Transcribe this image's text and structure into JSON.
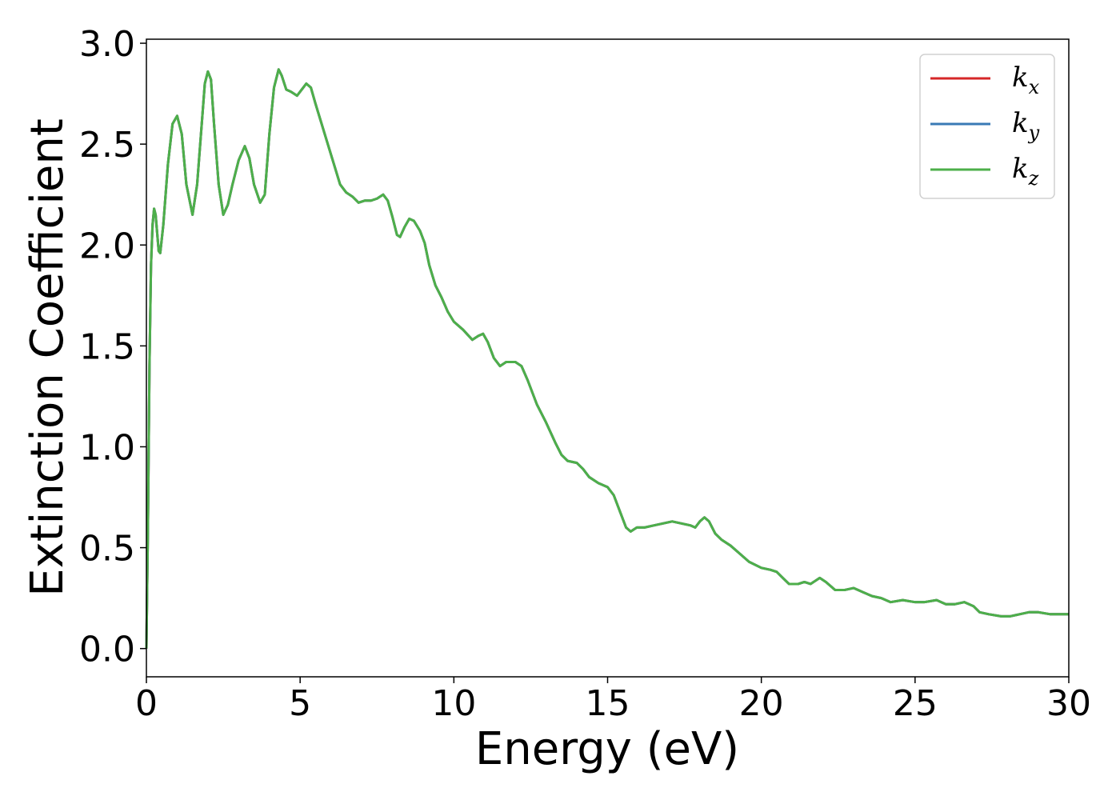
{
  "chart_data": {
    "type": "line",
    "title": "",
    "xlabel": "Energy (eV)",
    "ylabel": "Extinction Coefficient",
    "xlim": [
      0,
      30
    ],
    "ylim": [
      -0.14,
      3.02
    ],
    "x_ticks": [
      "0",
      "5",
      "10",
      "15",
      "20",
      "25",
      "30"
    ],
    "y_ticks": [
      "0.0",
      "0.5",
      "1.0",
      "1.5",
      "2.0",
      "2.5",
      "3.0"
    ],
    "grid": false,
    "legend_position": "top-right",
    "series": [
      {
        "name_base": "k",
        "name_sub": "x",
        "color": "#d62728",
        "points": [
          [
            0,
            0.0
          ],
          [
            0.05,
            0.6
          ],
          [
            0.1,
            1.4
          ],
          [
            0.15,
            1.9
          ],
          [
            0.2,
            2.1
          ],
          [
            0.25,
            2.18
          ],
          [
            0.3,
            2.15
          ],
          [
            0.4,
            1.97
          ],
          [
            0.45,
            1.96
          ],
          [
            0.55,
            2.1
          ],
          [
            0.7,
            2.4
          ],
          [
            0.85,
            2.6
          ],
          [
            1.0,
            2.64
          ],
          [
            1.15,
            2.55
          ],
          [
            1.3,
            2.3
          ],
          [
            1.5,
            2.15
          ],
          [
            1.65,
            2.3
          ],
          [
            1.8,
            2.6
          ],
          [
            1.9,
            2.8
          ],
          [
            2.0,
            2.86
          ],
          [
            2.1,
            2.82
          ],
          [
            2.2,
            2.6
          ],
          [
            2.35,
            2.3
          ],
          [
            2.5,
            2.15
          ],
          [
            2.65,
            2.2
          ],
          [
            2.8,
            2.3
          ],
          [
            3.0,
            2.42
          ],
          [
            3.2,
            2.49
          ],
          [
            3.35,
            2.43
          ],
          [
            3.5,
            2.3
          ],
          [
            3.7,
            2.21
          ],
          [
            3.85,
            2.25
          ],
          [
            4.0,
            2.55
          ],
          [
            4.15,
            2.78
          ],
          [
            4.3,
            2.87
          ],
          [
            4.4,
            2.84
          ],
          [
            4.55,
            2.77
          ],
          [
            4.7,
            2.76
          ],
          [
            4.9,
            2.74
          ],
          [
            5.1,
            2.78
          ],
          [
            5.2,
            2.8
          ],
          [
            5.35,
            2.78
          ],
          [
            5.5,
            2.7
          ],
          [
            5.7,
            2.6
          ],
          [
            5.9,
            2.5
          ],
          [
            6.1,
            2.4
          ],
          [
            6.3,
            2.3
          ],
          [
            6.5,
            2.26
          ],
          [
            6.7,
            2.24
          ],
          [
            6.9,
            2.21
          ],
          [
            7.1,
            2.22
          ],
          [
            7.3,
            2.22
          ],
          [
            7.5,
            2.23
          ],
          [
            7.7,
            2.25
          ],
          [
            7.85,
            2.22
          ],
          [
            8.0,
            2.14
          ],
          [
            8.15,
            2.05
          ],
          [
            8.25,
            2.04
          ],
          [
            8.4,
            2.09
          ],
          [
            8.55,
            2.13
          ],
          [
            8.7,
            2.12
          ],
          [
            8.9,
            2.07
          ],
          [
            9.05,
            2.01
          ],
          [
            9.2,
            1.9
          ],
          [
            9.4,
            1.8
          ],
          [
            9.6,
            1.74
          ],
          [
            9.8,
            1.67
          ],
          [
            10.0,
            1.62
          ],
          [
            10.3,
            1.58
          ],
          [
            10.6,
            1.53
          ],
          [
            10.8,
            1.55
          ],
          [
            10.95,
            1.56
          ],
          [
            11.1,
            1.52
          ],
          [
            11.3,
            1.44
          ],
          [
            11.5,
            1.4
          ],
          [
            11.7,
            1.42
          ],
          [
            12.0,
            1.42
          ],
          [
            12.2,
            1.4
          ],
          [
            12.4,
            1.33
          ],
          [
            12.7,
            1.21
          ],
          [
            13.0,
            1.12
          ],
          [
            13.3,
            1.02
          ],
          [
            13.5,
            0.96
          ],
          [
            13.7,
            0.93
          ],
          [
            14.0,
            0.92
          ],
          [
            14.2,
            0.89
          ],
          [
            14.4,
            0.85
          ],
          [
            14.7,
            0.82
          ],
          [
            15.0,
            0.8
          ],
          [
            15.2,
            0.76
          ],
          [
            15.4,
            0.68
          ],
          [
            15.6,
            0.6
          ],
          [
            15.75,
            0.58
          ],
          [
            15.95,
            0.6
          ],
          [
            16.2,
            0.6
          ],
          [
            16.5,
            0.61
          ],
          [
            16.8,
            0.62
          ],
          [
            17.1,
            0.63
          ],
          [
            17.4,
            0.62
          ],
          [
            17.7,
            0.61
          ],
          [
            17.85,
            0.6
          ],
          [
            18.0,
            0.63
          ],
          [
            18.15,
            0.65
          ],
          [
            18.3,
            0.63
          ],
          [
            18.5,
            0.57
          ],
          [
            18.7,
            0.54
          ],
          [
            19.0,
            0.51
          ],
          [
            19.3,
            0.47
          ],
          [
            19.6,
            0.43
          ],
          [
            20.0,
            0.4
          ],
          [
            20.3,
            0.39
          ],
          [
            20.5,
            0.38
          ],
          [
            20.7,
            0.35
          ],
          [
            20.9,
            0.32
          ],
          [
            21.2,
            0.32
          ],
          [
            21.4,
            0.33
          ],
          [
            21.6,
            0.32
          ],
          [
            21.9,
            0.35
          ],
          [
            22.1,
            0.33
          ],
          [
            22.4,
            0.29
          ],
          [
            22.7,
            0.29
          ],
          [
            23.0,
            0.3
          ],
          [
            23.3,
            0.28
          ],
          [
            23.6,
            0.26
          ],
          [
            23.9,
            0.25
          ],
          [
            24.2,
            0.23
          ],
          [
            24.6,
            0.24
          ],
          [
            25.0,
            0.23
          ],
          [
            25.3,
            0.23
          ],
          [
            25.7,
            0.24
          ],
          [
            26.0,
            0.22
          ],
          [
            26.3,
            0.22
          ],
          [
            26.6,
            0.23
          ],
          [
            26.9,
            0.21
          ],
          [
            27.1,
            0.18
          ],
          [
            27.4,
            0.17
          ],
          [
            27.8,
            0.16
          ],
          [
            28.1,
            0.16
          ],
          [
            28.4,
            0.17
          ],
          [
            28.7,
            0.18
          ],
          [
            29.0,
            0.18
          ],
          [
            29.4,
            0.17
          ],
          [
            30.0,
            0.17
          ]
        ]
      },
      {
        "name_base": "k",
        "name_sub": "y",
        "color": "#3a7ab5",
        "points": "same_as_series_0"
      },
      {
        "name_base": "k",
        "name_sub": "z",
        "color": "#4daf4a",
        "points": "same_as_series_0"
      }
    ]
  }
}
